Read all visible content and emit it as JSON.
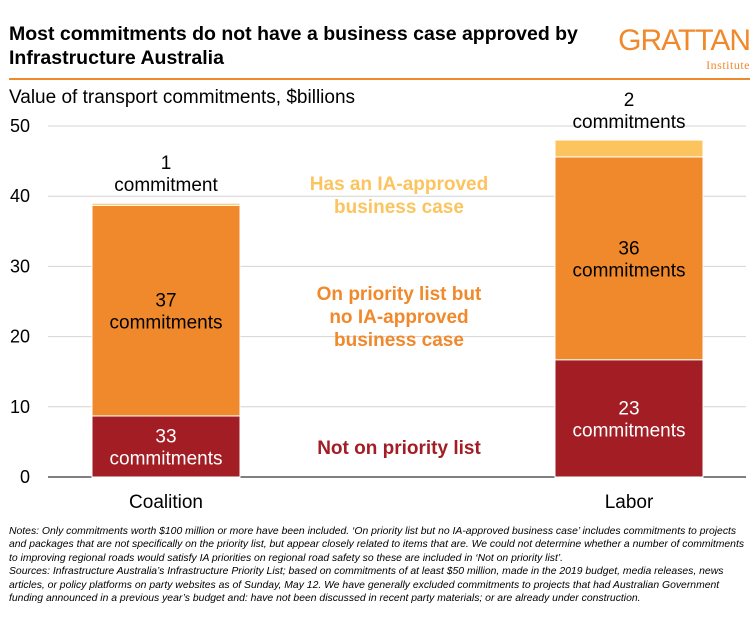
{
  "header": {
    "title": "Most commitments do not have a business case approved by Infrastructure Australia",
    "subtitle": "Value of transport commitments, $billions"
  },
  "logo": {
    "name": "GRATTAN",
    "sub": "Institute"
  },
  "chart_data": {
    "type": "bar",
    "stacked": true,
    "categories": [
      "Coalition",
      "Labor"
    ],
    "ylim": [
      0,
      50
    ],
    "yticks": [
      0,
      10,
      20,
      30,
      40,
      50
    ],
    "grid": true,
    "series": [
      {
        "name": "Not on priority list",
        "color": "#a21e24",
        "label_color": "#a21e24",
        "values": [
          8.7,
          16.7
        ],
        "segment_labels": [
          [
            "33",
            "commitments"
          ],
          [
            "23",
            "commitments"
          ]
        ],
        "segment_label_color": "#ffffff"
      },
      {
        "name": "On priority list but no IA-approved business case",
        "legend_lines": [
          "On priority list but",
          "no IA-approved",
          "business case"
        ],
        "color": "#f0892b",
        "label_color": "#f0892b",
        "values": [
          30.0,
          28.9
        ],
        "segment_labels": [
          [
            "37",
            "commitments"
          ],
          [
            "36",
            "commitments"
          ]
        ],
        "segment_label_color": "#000000"
      },
      {
        "name": "Has an IA-approved business case",
        "legend_lines": [
          "Has an IA-approved",
          "business case"
        ],
        "color": "#fcc45e",
        "label_color": "#fcc45e",
        "values": [
          0.3,
          2.4
        ],
        "segment_labels": [
          [
            "1",
            "commitment"
          ],
          [
            "2",
            "commitments"
          ]
        ],
        "segment_label_color": "#000000"
      }
    ]
  },
  "notes": {
    "notes_text": "Notes: Only commitments worth $100 million or more have been included. ‘On priority list but no IA-approved business case’ includes commitments to projects and packages that are not specifically on the priority list, but appear closely related to items that are. We could not determine whether a number of commitments to improving regional roads would satisfy IA priorities on regional road safety so these are included in ‘Not on priority list’.",
    "sources_text": "Sources: Infrastructure Australia’s Infrastructure Priority List; based on commitments of at least $50 million, made in the 2019 budget, media releases, news articles, or policy platforms on party websites as of Sunday, May 12. We have generally excluded commitments to projects that had Australian Government funding announced in a previous year’s budget and: have not been discussed in recent party materials; or are already under construction."
  }
}
